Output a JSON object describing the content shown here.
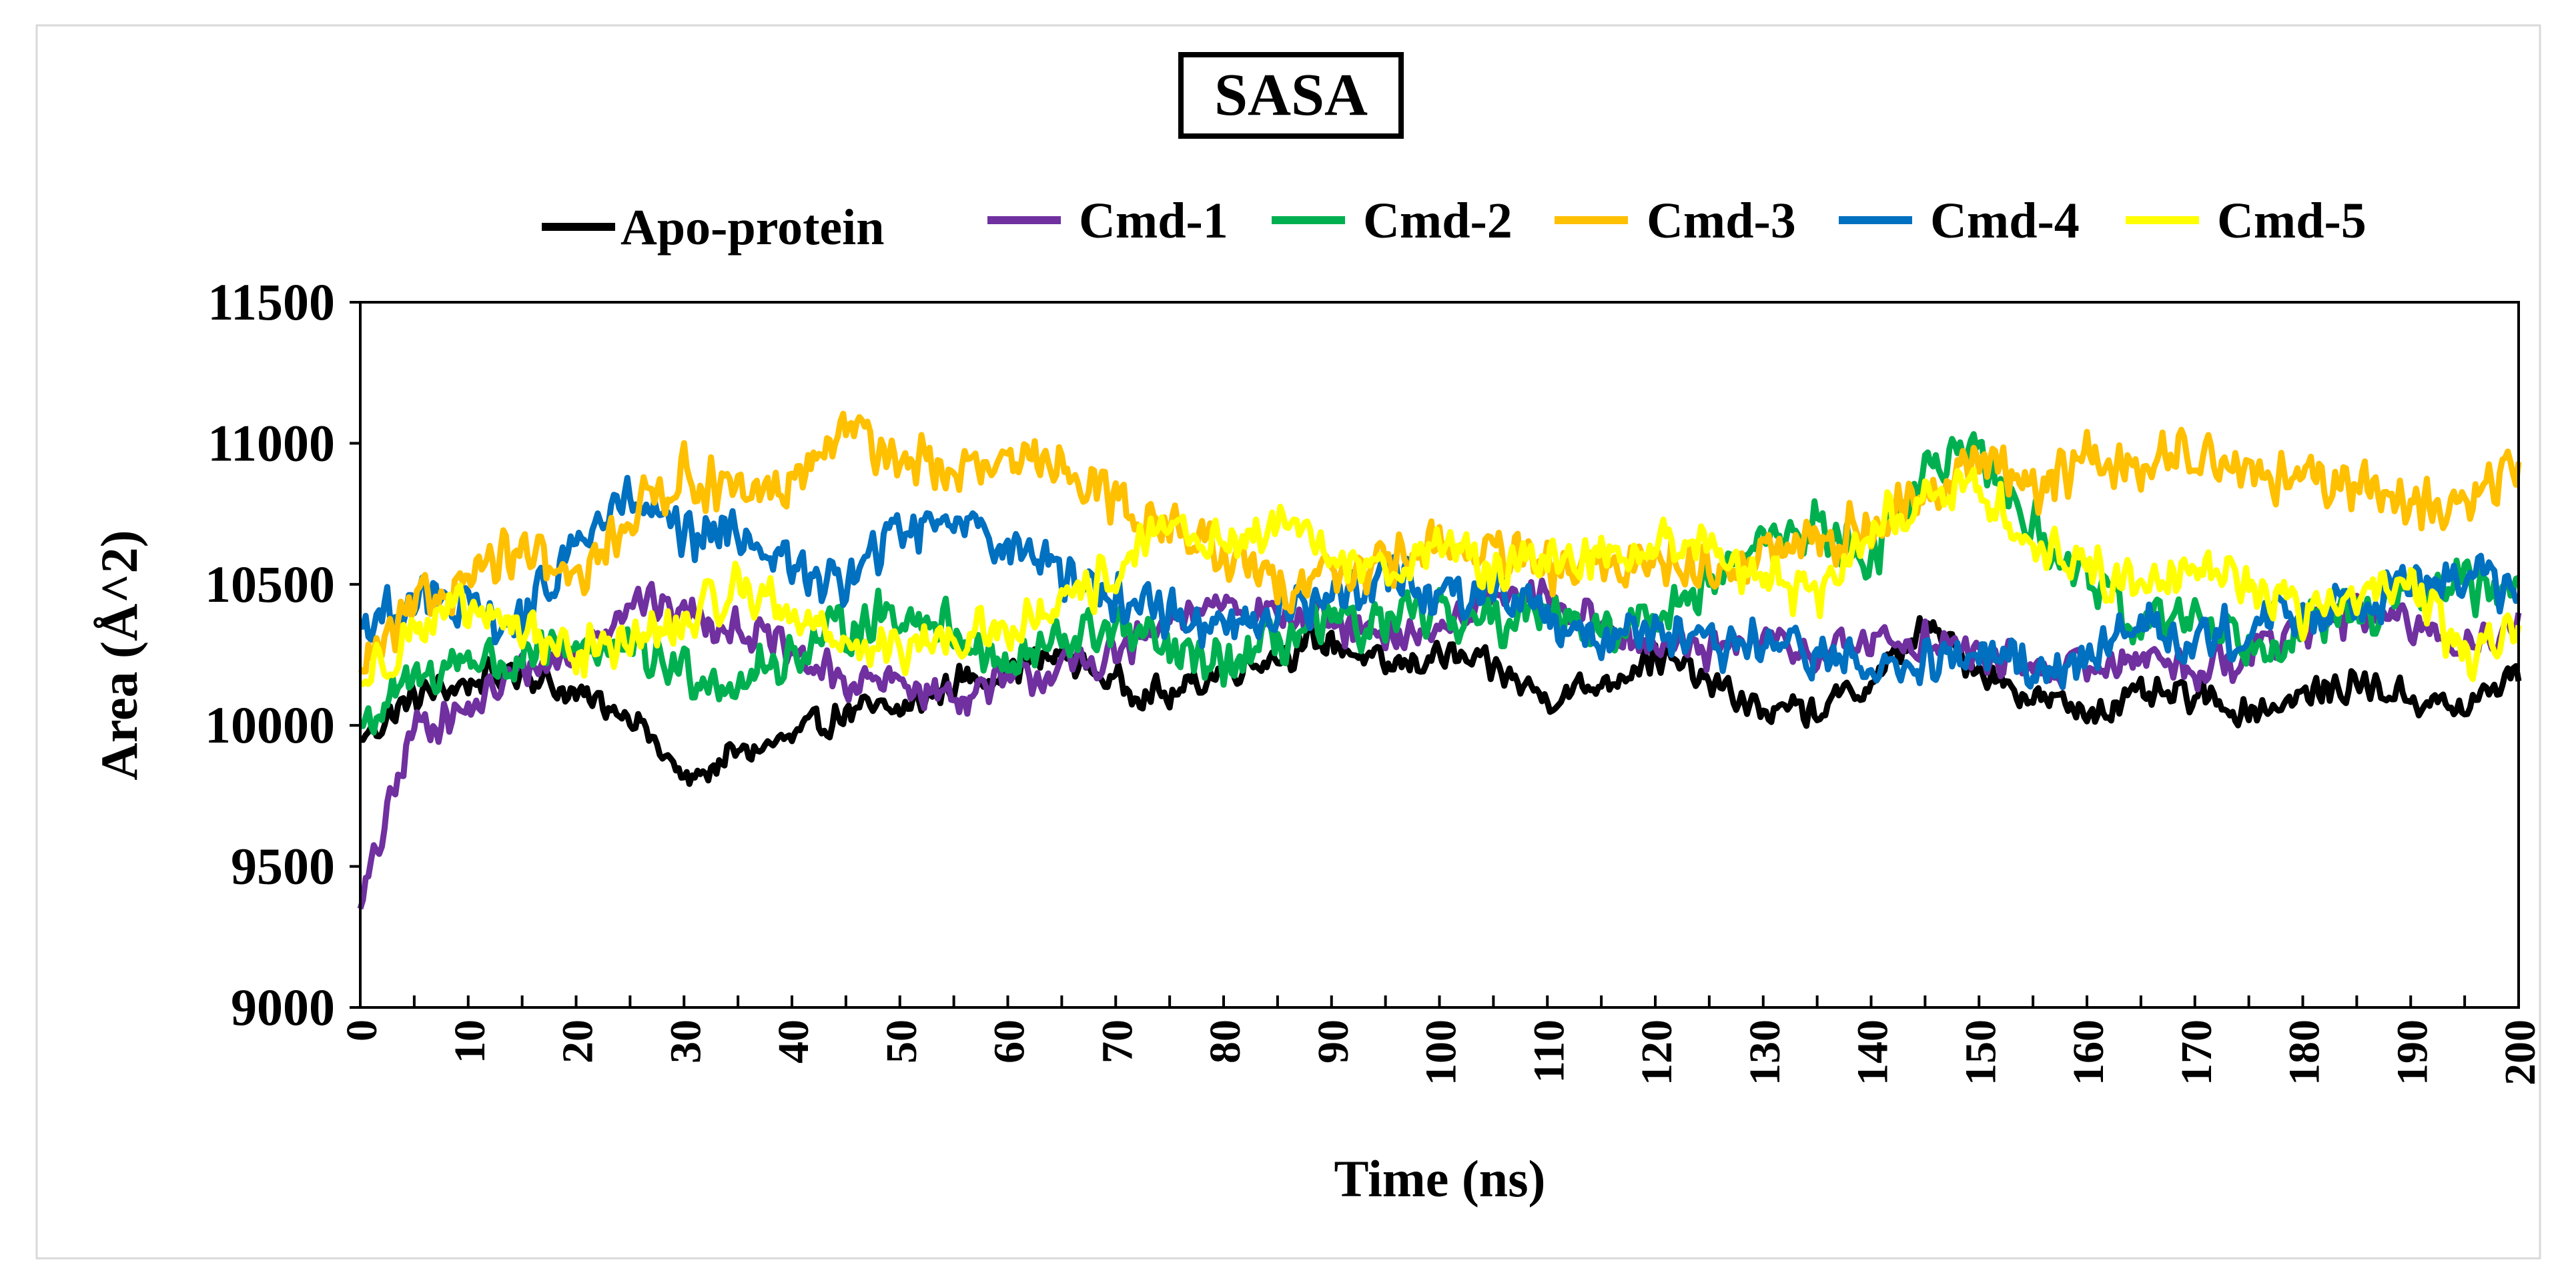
{
  "chart_data": {
    "type": "line",
    "title": "SASA",
    "xlabel": "Time (ns)",
    "ylabel": "Area (Å^2)",
    "xlim": [
      0,
      200
    ],
    "ylim": [
      9000,
      11500
    ],
    "xticks": [
      "0",
      "10",
      "20",
      "30",
      "40",
      "50",
      "60",
      "70",
      "80",
      "90",
      "100",
      "110",
      "120",
      "130",
      "140",
      "150",
      "160",
      "170",
      "180",
      "190",
      "200"
    ],
    "yticks": [
      "9000",
      "9500",
      "10000",
      "10500",
      "11000",
      "11500"
    ],
    "grid": false,
    "legend_position": "top",
    "x": [
      0,
      5,
      10,
      15,
      20,
      25,
      30,
      35,
      40,
      45,
      50,
      55,
      60,
      65,
      70,
      75,
      80,
      85,
      90,
      95,
      100,
      105,
      110,
      115,
      120,
      125,
      130,
      135,
      140,
      145,
      150,
      155,
      160,
      165,
      170,
      175,
      180,
      185,
      190,
      195,
      200
    ],
    "series": [
      {
        "name": "Apo-protein",
        "color": "#000000",
        "values": [
          9950,
          10100,
          10150,
          10200,
          10100,
          10050,
          9800,
          9900,
          9950,
          10050,
          10050,
          10150,
          10200,
          10250,
          10150,
          10100,
          10200,
          10250,
          10300,
          10200,
          10250,
          10200,
          10100,
          10150,
          10250,
          10150,
          10050,
          10050,
          10150,
          10350,
          10200,
          10100,
          10050,
          10100,
          10100,
          10050,
          10100,
          10150,
          10100,
          10050,
          10200
        ]
      },
      {
        "name": "Cmd-1",
        "color": "#7030a0",
        "values": [
          9350,
          10000,
          10050,
          10200,
          10250,
          10450,
          10400,
          10350,
          10250,
          10150,
          10150,
          10100,
          10150,
          10200,
          10250,
          10350,
          10450,
          10400,
          10350,
          10300,
          10350,
          10450,
          10450,
          10350,
          10300,
          10250,
          10300,
          10250,
          10300,
          10300,
          10250,
          10200,
          10200,
          10250,
          10200,
          10250,
          10350,
          10400,
          10350,
          10300,
          10350
        ]
      },
      {
        "name": "Cmd-2",
        "color": "#00b050",
        "values": [
          10000,
          10150,
          10250,
          10200,
          10300,
          10250,
          10200,
          10150,
          10250,
          10350,
          10400,
          10350,
          10200,
          10300,
          10350,
          10250,
          10200,
          10300,
          10350,
          10350,
          10400,
          10350,
          10450,
          10300,
          10400,
          10500,
          10650,
          10700,
          10600,
          10900,
          10950,
          10700,
          10500,
          10350,
          10400,
          10300,
          10350,
          10400,
          10450,
          10500,
          10450
        ]
      },
      {
        "name": "Cmd-3",
        "color": "#ffc000",
        "values": [
          10200,
          10400,
          10550,
          10600,
          10500,
          10750,
          10900,
          10800,
          10850,
          11050,
          10950,
          10900,
          10900,
          10950,
          10800,
          10700,
          10600,
          10500,
          10550,
          10550,
          10650,
          10600,
          10550,
          10550,
          10600,
          10550,
          10600,
          10650,
          10700,
          10800,
          10950,
          10850,
          10950,
          10900,
          11000,
          10900,
          10850,
          10850,
          10800,
          10750,
          10950
        ]
      },
      {
        "name": "Cmd-4",
        "color": "#0070c0",
        "values": [
          10350,
          10450,
          10400,
          10350,
          10650,
          10800,
          10650,
          10700,
          10550,
          10500,
          10700,
          10750,
          10650,
          10550,
          10450,
          10400,
          10350,
          10400,
          10450,
          10550,
          10450,
          10500,
          10400,
          10300,
          10350,
          10250,
          10300,
          10250,
          10200,
          10200,
          10250,
          10200,
          10250,
          10350,
          10300,
          10350,
          10400,
          10450,
          10500,
          10550,
          10450
        ]
      },
      {
        "name": "Cmd-5",
        "color": "#ffff00",
        "values": [
          10150,
          10350,
          10400,
          10350,
          10250,
          10300,
          10350,
          10500,
          10400,
          10300,
          10250,
          10300,
          10350,
          10400,
          10550,
          10700,
          10650,
          10700,
          10600,
          10550,
          10650,
          10550,
          10600,
          10600,
          10650,
          10650,
          10500,
          10450,
          10700,
          10800,
          10850,
          10650,
          10550,
          10500,
          10600,
          10500,
          10400,
          10450,
          10500,
          10250,
          10350
        ]
      }
    ]
  }
}
